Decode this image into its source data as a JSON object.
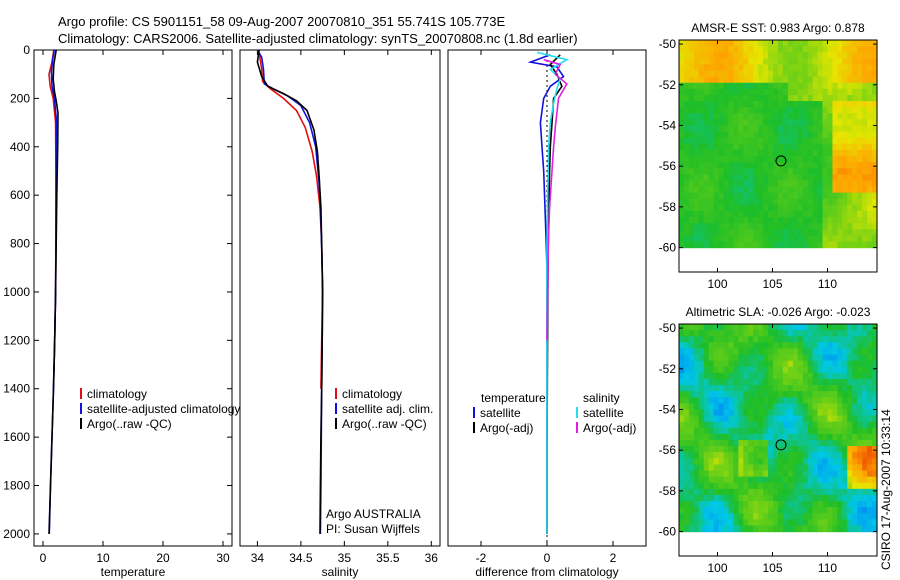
{
  "header": {
    "line1": "Argo profile: CS 5901151_58 09-Aug-2007 20070810_351 55.741S 105.773E",
    "line2": "Climatology: CARS2006. Satellite-adjusted climatology: synTS_20070808.nc (1.8d earlier)"
  },
  "colors": {
    "climatology": "#e01010",
    "satellite": "#1010e0",
    "argo": "#000000",
    "salinity_satellite": "#20e0f0",
    "salinity_argo": "#e020e0"
  },
  "credit": "CSIRO 17-Aug-2007 10:33:14",
  "chart_data": [
    {
      "id": "temperature",
      "type": "line",
      "xlabel": "temperature",
      "xlim": [
        -1.5,
        31.5
      ],
      "ylim": [
        2050,
        0
      ],
      "xticks": [
        0,
        10,
        20,
        30
      ],
      "yticks": [
        0,
        200,
        400,
        600,
        800,
        1000,
        1200,
        1400,
        1600,
        1800,
        2000
      ],
      "legend": {
        "placement": "lower-right",
        "entries": [
          "climatology",
          "satellite-adjusted climatology",
          "Argo(..raw -QC)"
        ]
      },
      "series": [
        {
          "name": "climatology",
          "color": "#e01010",
          "points": [
            [
              1.8,
              0
            ],
            [
              1.5,
              50
            ],
            [
              1.0,
              100
            ],
            [
              1.2,
              150
            ],
            [
              1.7,
              200
            ],
            [
              2.1,
              300
            ],
            [
              2.15,
              500
            ],
            [
              2.15,
              800
            ],
            [
              2.1,
              1000
            ],
            [
              1.95,
              1200
            ],
            [
              1.75,
              1400
            ]
          ]
        },
        {
          "name": "satellite-adjusted climatology",
          "color": "#1010e0",
          "points": [
            [
              1.9,
              0
            ],
            [
              1.6,
              40
            ],
            [
              1.4,
              90
            ],
            [
              1.5,
              150
            ],
            [
              1.9,
              200
            ],
            [
              2.2,
              280
            ],
            [
              2.2,
              500
            ],
            [
              2.15,
              800
            ],
            [
              2.1,
              1000
            ],
            [
              1.95,
              1200
            ],
            [
              1.75,
              1400
            ],
            [
              1.5,
              1600
            ],
            [
              1.25,
              1800
            ],
            [
              1.05,
              2000
            ]
          ]
        },
        {
          "name": "Argo(..raw -QC)",
          "color": "#000000",
          "points": [
            [
              2.2,
              0
            ],
            [
              1.8,
              60
            ],
            [
              1.7,
              120
            ],
            [
              1.9,
              170
            ],
            [
              2.2,
              210
            ],
            [
              2.5,
              260
            ],
            [
              2.45,
              400
            ],
            [
              2.3,
              600
            ],
            [
              2.2,
              800
            ],
            [
              2.1,
              1000
            ],
            [
              1.95,
              1200
            ],
            [
              1.75,
              1400
            ],
            [
              1.5,
              1600
            ],
            [
              1.25,
              1800
            ],
            [
              1.0,
              2000
            ]
          ]
        }
      ]
    },
    {
      "id": "salinity",
      "type": "line",
      "xlabel": "salinity",
      "xlim": [
        33.8,
        36.1
      ],
      "ylim": [
        2050,
        0
      ],
      "xticks": [
        34,
        34.5,
        35,
        35.5,
        36
      ],
      "yticks": [],
      "legend": {
        "placement": "lower-right",
        "entries": [
          "climatology",
          "satellite adj. clim.",
          "Argo(..raw -QC)"
        ]
      },
      "annotation": {
        "lines": [
          "Argo AUSTRALIA",
          "PI: Susan Wijffels"
        ],
        "placement": "bottom-right"
      },
      "series": [
        {
          "name": "climatology",
          "color": "#e01010",
          "points": [
            [
              34.02,
              10
            ],
            [
              34.05,
              80
            ],
            [
              34.06,
              130
            ],
            [
              34.15,
              160
            ],
            [
              34.3,
              200
            ],
            [
              34.45,
              250
            ],
            [
              34.55,
              320
            ],
            [
              34.63,
              420
            ],
            [
              34.68,
              520
            ],
            [
              34.72,
              650
            ],
            [
              34.74,
              800
            ],
            [
              34.75,
              1000
            ],
            [
              34.74,
              1200
            ],
            [
              34.73,
              1400
            ]
          ]
        },
        {
          "name": "satellite adj. clim.",
          "color": "#1010e0",
          "points": [
            [
              34.0,
              0
            ],
            [
              34.05,
              30
            ],
            [
              34.07,
              80
            ],
            [
              34.08,
              140
            ],
            [
              34.18,
              160
            ],
            [
              34.35,
              190
            ],
            [
              34.5,
              230
            ],
            [
              34.6,
              300
            ],
            [
              34.67,
              400
            ],
            [
              34.71,
              550
            ],
            [
              34.73,
              700
            ],
            [
              34.745,
              900
            ],
            [
              34.75,
              1000
            ],
            [
              34.745,
              1200
            ],
            [
              34.74,
              1400
            ],
            [
              34.735,
              1600
            ],
            [
              34.73,
              1800
            ],
            [
              34.725,
              2000
            ]
          ]
        },
        {
          "name": "Argo(..raw -QC)",
          "color": "#000000",
          "points": [
            [
              34.02,
              0
            ],
            [
              34.0,
              50
            ],
            [
              34.05,
              110
            ],
            [
              34.12,
              150
            ],
            [
              34.3,
              180
            ],
            [
              34.45,
              210
            ],
            [
              34.57,
              250
            ],
            [
              34.65,
              330
            ],
            [
              34.69,
              420
            ],
            [
              34.71,
              520
            ],
            [
              34.73,
              650
            ],
            [
              34.74,
              800
            ],
            [
              34.75,
              1000
            ],
            [
              34.745,
              1200
            ],
            [
              34.74,
              1400
            ],
            [
              34.73,
              1600
            ],
            [
              34.725,
              1800
            ],
            [
              34.72,
              2000
            ]
          ]
        }
      ]
    },
    {
      "id": "difference",
      "type": "line",
      "xlabel": "difference from climatology",
      "xlim": [
        -3,
        3
      ],
      "ylim": [
        2050,
        0
      ],
      "xticks": [
        -2,
        0,
        2
      ],
      "yticks": [],
      "reference_line_x": 0,
      "legend": {
        "placement": "lower",
        "temperature": {
          "title": "temperature",
          "entries": [
            "satellite",
            "Argo(-adj)"
          ]
        },
        "salinity": {
          "title": "salinity",
          "entries": [
            "satellite",
            "Argo(-adj)"
          ]
        }
      },
      "series": [
        {
          "name": "temperature satellite",
          "color": "#1010e0",
          "points": [
            [
              0.1,
              20
            ],
            [
              -0.5,
              50
            ],
            [
              0.3,
              70
            ],
            [
              0.5,
              110
            ],
            [
              0.1,
              150
            ],
            [
              -0.1,
              200
            ],
            [
              -0.2,
              300
            ],
            [
              -0.15,
              400
            ],
            [
              -0.1,
              500
            ],
            [
              -0.05,
              700
            ],
            [
              0,
              900
            ],
            [
              0,
              1100
            ],
            [
              0,
              1400
            ],
            [
              0,
              1700
            ],
            [
              0,
              2000
            ]
          ]
        },
        {
          "name": "temperature Argo(-adj)",
          "color": "#000000",
          "points": [
            [
              0.4,
              20
            ],
            [
              0.1,
              60
            ],
            [
              0.3,
              100
            ],
            [
              0.45,
              150
            ],
            [
              0.2,
              200
            ],
            [
              0.15,
              300
            ],
            [
              0.1,
              400
            ],
            [
              0.08,
              500
            ],
            [
              0.05,
              700
            ],
            [
              0.03,
              900
            ],
            [
              0.02,
              1100
            ],
            [
              0.01,
              1400
            ],
            [
              0,
              1700
            ],
            [
              0,
              2000
            ]
          ]
        },
        {
          "name": "salinity satellite",
          "color": "#20e0f0",
          "points": [
            [
              -0.3,
              10
            ],
            [
              0.6,
              40
            ],
            [
              0.1,
              80
            ],
            [
              0.4,
              120
            ],
            [
              0.3,
              160
            ],
            [
              0.2,
              220
            ],
            [
              0.1,
              300
            ],
            [
              0.05,
              400
            ],
            [
              0.02,
              600
            ],
            [
              0,
              800
            ],
            [
              0,
              1000
            ],
            [
              0,
              1300
            ],
            [
              0,
              1600
            ],
            [
              0,
              2000
            ]
          ]
        },
        {
          "name": "salinity Argo(-adj)",
          "color": "#e020e0",
          "points": [
            [
              -0.1,
              40
            ],
            [
              0.4,
              60
            ],
            [
              0.25,
              100
            ],
            [
              0.6,
              140
            ],
            [
              0.35,
              200
            ],
            [
              0.3,
              260
            ],
            [
              0.25,
              320
            ],
            [
              0.2,
              400
            ],
            [
              0.15,
              500
            ],
            [
              0.08,
              650
            ],
            [
              0.04,
              800
            ],
            [
              0.02,
              1000
            ],
            [
              0,
              1200
            ]
          ]
        }
      ]
    },
    {
      "id": "sst_map",
      "type": "heatmap",
      "title": "AMSR-E SST: 0.983  Argo: 0.878",
      "xlim": [
        96.5,
        114.5
      ],
      "ylim": [
        -61.2,
        -49.8
      ],
      "xticks": [
        100,
        105,
        110
      ],
      "yticks": [
        -50,
        -52,
        -54,
        -56,
        -58,
        -60
      ],
      "data_extent": {
        "x": [
          96.5,
          114.5
        ],
        "y": [
          -60,
          -49.8
        ]
      },
      "marker": {
        "x": 105.773,
        "y": -55.741
      }
    },
    {
      "id": "sla_map",
      "type": "heatmap",
      "title": "Altimetric SLA: -0.026  Argo: -0.023",
      "xlim": [
        96.5,
        114.5
      ],
      "ylim": [
        -61.2,
        -49.8
      ],
      "xticks": [
        100,
        105,
        110
      ],
      "yticks": [
        -50,
        -52,
        -54,
        -56,
        -58,
        -60
      ],
      "data_extent": {
        "x": [
          96.5,
          114.5
        ],
        "y": [
          -60,
          -49.8
        ]
      },
      "marker": {
        "x": 105.773,
        "y": -55.741
      }
    }
  ]
}
